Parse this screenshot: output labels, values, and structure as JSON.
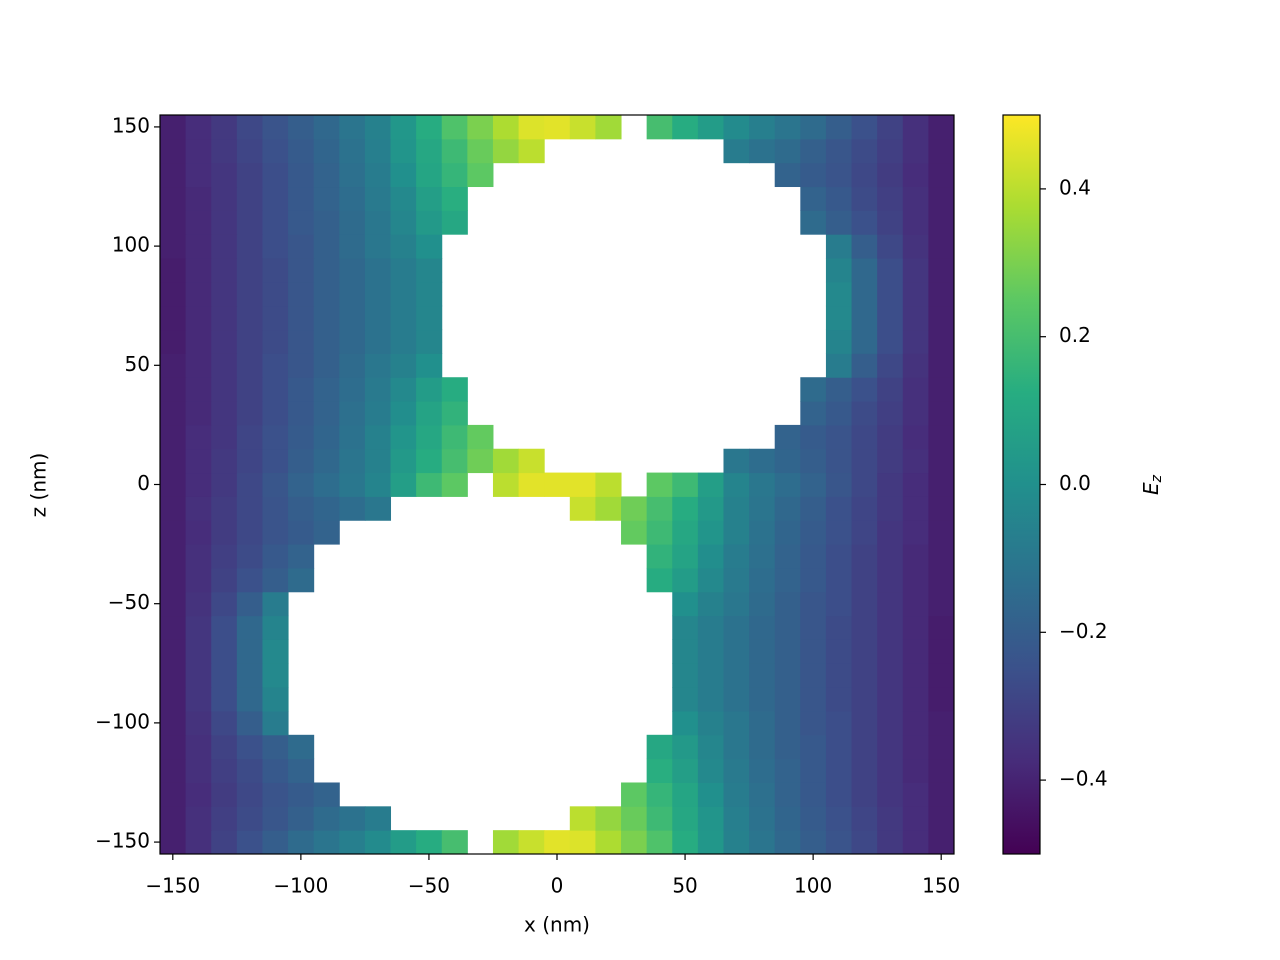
{
  "chart_data": {
    "type": "heatmap",
    "x_label": "x (nm)",
    "y_label": "z (nm)",
    "colorbar_label_base": "E",
    "colorbar_label_sub": "z",
    "colormap": "viridis",
    "x": [
      -150,
      -140,
      -130,
      -120,
      -110,
      -100,
      -90,
      -80,
      -70,
      -60,
      -50,
      -40,
      -30,
      -20,
      -10,
      0,
      10,
      20,
      30,
      40,
      50,
      60,
      70,
      80,
      90,
      100,
      110,
      120,
      130,
      140,
      150
    ],
    "y": [
      -150,
      -140,
      -130,
      -120,
      -110,
      -100,
      -90,
      -80,
      -70,
      -60,
      -50,
      -40,
      -30,
      -20,
      -10,
      0,
      10,
      20,
      30,
      40,
      50,
      60,
      70,
      80,
      90,
      100,
      110,
      120,
      130,
      140,
      150
    ],
    "values": [
      [
        -0.41,
        -0.36,
        -0.3,
        -0.25,
        -0.2,
        -0.15,
        -0.11,
        -0.07,
        -0.02,
        0.05,
        0.12,
        0.2,
        null,
        0.36,
        0.42,
        0.46,
        0.45,
        0.38,
        0.3,
        0.22,
        0.12,
        0.03,
        -0.06,
        -0.11,
        -0.16,
        -0.2,
        -0.24,
        -0.28,
        -0.33,
        -0.37,
        -0.41
      ],
      [
        -0.41,
        -0.36,
        -0.31,
        -0.27,
        -0.23,
        -0.19,
        -0.15,
        -0.12,
        -0.08,
        null,
        null,
        null,
        null,
        null,
        null,
        null,
        0.4,
        0.34,
        0.27,
        0.18,
        0.1,
        0.02,
        -0.07,
        -0.12,
        -0.17,
        -0.21,
        -0.25,
        -0.29,
        -0.33,
        -0.37,
        -0.41
      ],
      [
        -0.41,
        -0.37,
        -0.32,
        -0.28,
        -0.24,
        -0.21,
        -0.18,
        null,
        null,
        null,
        null,
        null,
        null,
        null,
        null,
        null,
        null,
        null,
        0.25,
        0.16,
        0.09,
        0.0,
        -0.08,
        -0.13,
        -0.18,
        -0.22,
        -0.26,
        -0.3,
        -0.34,
        -0.37,
        -0.41
      ],
      [
        -0.41,
        -0.36,
        -0.31,
        -0.27,
        -0.22,
        -0.18,
        null,
        null,
        null,
        null,
        null,
        null,
        null,
        null,
        null,
        null,
        null,
        null,
        null,
        0.13,
        0.06,
        -0.03,
        -0.09,
        -0.14,
        -0.18,
        -0.22,
        -0.26,
        -0.3,
        -0.34,
        -0.38,
        -0.41
      ],
      [
        -0.41,
        -0.36,
        -0.3,
        -0.25,
        -0.2,
        -0.15,
        null,
        null,
        null,
        null,
        null,
        null,
        null,
        null,
        null,
        null,
        null,
        null,
        null,
        0.1,
        0.04,
        -0.04,
        -0.1,
        -0.15,
        -0.19,
        -0.22,
        -0.26,
        -0.3,
        -0.34,
        -0.38,
        -0.41
      ],
      [
        -0.41,
        -0.35,
        -0.28,
        -0.2,
        -0.08,
        null,
        null,
        null,
        null,
        null,
        null,
        null,
        null,
        null,
        null,
        null,
        null,
        null,
        null,
        null,
        0.0,
        -0.06,
        -0.1,
        -0.15,
        -0.19,
        -0.23,
        -0.26,
        -0.3,
        -0.34,
        -0.38,
        -0.41
      ],
      [
        -0.41,
        -0.34,
        -0.26,
        -0.16,
        -0.05,
        null,
        null,
        null,
        null,
        null,
        null,
        null,
        null,
        null,
        null,
        null,
        null,
        null,
        null,
        null,
        -0.04,
        -0.08,
        -0.12,
        -0.16,
        -0.19,
        -0.23,
        -0.27,
        -0.3,
        -0.34,
        -0.38,
        -0.42
      ],
      [
        -0.41,
        -0.34,
        -0.26,
        -0.16,
        -0.03,
        null,
        null,
        null,
        null,
        null,
        null,
        null,
        null,
        null,
        null,
        null,
        null,
        null,
        null,
        null,
        -0.04,
        -0.08,
        -0.12,
        -0.16,
        -0.19,
        -0.23,
        -0.27,
        -0.3,
        -0.34,
        -0.38,
        -0.42
      ],
      [
        -0.41,
        -0.34,
        -0.26,
        -0.16,
        -0.03,
        null,
        null,
        null,
        null,
        null,
        null,
        null,
        null,
        null,
        null,
        null,
        null,
        null,
        null,
        null,
        -0.04,
        -0.08,
        -0.12,
        -0.16,
        -0.19,
        -0.23,
        -0.27,
        -0.3,
        -0.34,
        -0.38,
        -0.42
      ],
      [
        -0.41,
        -0.34,
        -0.26,
        -0.16,
        -0.05,
        null,
        null,
        null,
        null,
        null,
        null,
        null,
        null,
        null,
        null,
        null,
        null,
        null,
        null,
        null,
        -0.04,
        -0.08,
        -0.12,
        -0.16,
        -0.19,
        -0.23,
        -0.27,
        -0.3,
        -0.34,
        -0.38,
        -0.42
      ],
      [
        -0.41,
        -0.35,
        -0.28,
        -0.2,
        -0.08,
        null,
        null,
        null,
        null,
        null,
        null,
        null,
        null,
        null,
        null,
        null,
        null,
        null,
        null,
        null,
        0.0,
        -0.06,
        -0.1,
        -0.15,
        -0.19,
        -0.23,
        -0.26,
        -0.3,
        -0.34,
        -0.38,
        -0.41
      ],
      [
        -0.41,
        -0.36,
        -0.3,
        -0.25,
        -0.2,
        -0.15,
        null,
        null,
        null,
        null,
        null,
        null,
        null,
        null,
        null,
        null,
        null,
        null,
        null,
        0.12,
        0.05,
        -0.03,
        -0.09,
        -0.14,
        -0.18,
        -0.22,
        -0.26,
        -0.3,
        -0.34,
        -0.38,
        -0.41
      ],
      [
        -0.41,
        -0.36,
        -0.31,
        -0.27,
        -0.22,
        -0.18,
        null,
        null,
        null,
        null,
        null,
        null,
        null,
        null,
        null,
        null,
        null,
        null,
        null,
        0.15,
        0.08,
        -0.01,
        -0.08,
        -0.13,
        -0.18,
        -0.22,
        -0.26,
        -0.3,
        -0.34,
        -0.38,
        -0.41
      ],
      [
        -0.41,
        -0.37,
        -0.32,
        -0.28,
        -0.24,
        -0.21,
        -0.18,
        null,
        null,
        null,
        null,
        null,
        null,
        null,
        null,
        null,
        null,
        null,
        0.26,
        0.18,
        0.1,
        0.02,
        -0.06,
        -0.12,
        -0.17,
        -0.21,
        -0.25,
        -0.29,
        -0.34,
        -0.37,
        -0.41
      ],
      [
        -0.41,
        -0.36,
        -0.32,
        -0.28,
        -0.24,
        -0.2,
        -0.17,
        -0.14,
        -0.1,
        null,
        null,
        null,
        null,
        null,
        null,
        null,
        0.42,
        0.36,
        0.28,
        0.2,
        0.12,
        0.04,
        -0.06,
        -0.11,
        -0.16,
        -0.2,
        -0.25,
        -0.29,
        -0.33,
        -0.37,
        -0.41
      ],
      [
        -0.41,
        -0.37,
        -0.33,
        -0.28,
        -0.23,
        -0.18,
        -0.14,
        -0.1,
        -0.05,
        0.06,
        0.18,
        0.25,
        null,
        0.4,
        0.46,
        0.46,
        0.46,
        0.4,
        null,
        0.25,
        0.18,
        0.06,
        -0.05,
        -0.1,
        -0.14,
        -0.18,
        -0.23,
        -0.28,
        -0.33,
        -0.37,
        -0.41
      ],
      [
        -0.41,
        -0.37,
        -0.33,
        -0.29,
        -0.25,
        -0.2,
        -0.16,
        -0.11,
        -0.06,
        0.04,
        0.12,
        0.2,
        0.28,
        0.36,
        0.42,
        null,
        null,
        null,
        null,
        null,
        null,
        null,
        -0.1,
        -0.14,
        -0.17,
        -0.2,
        -0.24,
        -0.28,
        -0.32,
        -0.36,
        -0.41
      ],
      [
        -0.41,
        -0.37,
        -0.34,
        -0.29,
        -0.25,
        -0.21,
        -0.17,
        -0.12,
        -0.06,
        0.02,
        0.1,
        0.18,
        0.26,
        null,
        null,
        null,
        null,
        null,
        null,
        null,
        null,
        null,
        null,
        null,
        -0.18,
        -0.21,
        -0.24,
        -0.28,
        -0.32,
        -0.37,
        -0.41
      ],
      [
        -0.41,
        -0.38,
        -0.34,
        -0.3,
        -0.26,
        -0.22,
        -0.18,
        -0.13,
        -0.08,
        -0.01,
        0.08,
        0.15,
        null,
        null,
        null,
        null,
        null,
        null,
        null,
        null,
        null,
        null,
        null,
        null,
        null,
        -0.18,
        -0.22,
        -0.27,
        -0.31,
        -0.36,
        -0.41
      ],
      [
        -0.41,
        -0.38,
        -0.34,
        -0.3,
        -0.26,
        -0.22,
        -0.18,
        -0.14,
        -0.09,
        -0.03,
        0.05,
        0.12,
        null,
        null,
        null,
        null,
        null,
        null,
        null,
        null,
        null,
        null,
        null,
        null,
        null,
        -0.15,
        -0.2,
        -0.25,
        -0.3,
        -0.36,
        -0.41
      ],
      [
        -0.41,
        -0.38,
        -0.34,
        -0.3,
        -0.26,
        -0.23,
        -0.19,
        -0.15,
        -0.1,
        -0.06,
        0.0,
        null,
        null,
        null,
        null,
        null,
        null,
        null,
        null,
        null,
        null,
        null,
        null,
        null,
        null,
        null,
        -0.08,
        -0.2,
        -0.28,
        -0.35,
        -0.41
      ],
      [
        -0.42,
        -0.38,
        -0.34,
        -0.3,
        -0.27,
        -0.23,
        -0.19,
        -0.16,
        -0.12,
        -0.08,
        -0.04,
        null,
        null,
        null,
        null,
        null,
        null,
        null,
        null,
        null,
        null,
        null,
        null,
        null,
        null,
        null,
        -0.05,
        -0.16,
        -0.26,
        -0.34,
        -0.41
      ],
      [
        -0.42,
        -0.38,
        -0.34,
        -0.3,
        -0.27,
        -0.23,
        -0.19,
        -0.16,
        -0.12,
        -0.08,
        -0.04,
        null,
        null,
        null,
        null,
        null,
        null,
        null,
        null,
        null,
        null,
        null,
        null,
        null,
        null,
        null,
        -0.03,
        -0.16,
        -0.26,
        -0.34,
        -0.41
      ],
      [
        -0.42,
        -0.38,
        -0.34,
        -0.3,
        -0.27,
        -0.23,
        -0.19,
        -0.16,
        -0.12,
        -0.08,
        -0.04,
        null,
        null,
        null,
        null,
        null,
        null,
        null,
        null,
        null,
        null,
        null,
        null,
        null,
        null,
        null,
        -0.03,
        -0.16,
        -0.26,
        -0.34,
        -0.41
      ],
      [
        -0.42,
        -0.38,
        -0.34,
        -0.3,
        -0.27,
        -0.23,
        -0.19,
        -0.16,
        -0.12,
        -0.08,
        -0.04,
        null,
        null,
        null,
        null,
        null,
        null,
        null,
        null,
        null,
        null,
        null,
        null,
        null,
        null,
        null,
        -0.05,
        -0.16,
        -0.26,
        -0.34,
        -0.41
      ],
      [
        -0.41,
        -0.38,
        -0.34,
        -0.3,
        -0.26,
        -0.23,
        -0.19,
        -0.15,
        -0.1,
        -0.06,
        0.0,
        null,
        null,
        null,
        null,
        null,
        null,
        null,
        null,
        null,
        null,
        null,
        null,
        null,
        null,
        null,
        -0.08,
        -0.2,
        -0.28,
        -0.35,
        -0.41
      ],
      [
        -0.41,
        -0.38,
        -0.34,
        -0.3,
        -0.26,
        -0.22,
        -0.19,
        -0.15,
        -0.1,
        -0.04,
        0.04,
        0.1,
        null,
        null,
        null,
        null,
        null,
        null,
        null,
        null,
        null,
        null,
        null,
        null,
        null,
        -0.15,
        -0.2,
        -0.25,
        -0.3,
        -0.36,
        -0.41
      ],
      [
        -0.41,
        -0.38,
        -0.34,
        -0.3,
        -0.26,
        -0.22,
        -0.18,
        -0.14,
        -0.09,
        -0.03,
        0.06,
        0.13,
        null,
        null,
        null,
        null,
        null,
        null,
        null,
        null,
        null,
        null,
        null,
        null,
        null,
        -0.18,
        -0.22,
        -0.27,
        -0.31,
        -0.36,
        -0.41
      ],
      [
        -0.41,
        -0.37,
        -0.34,
        -0.3,
        -0.26,
        -0.22,
        -0.18,
        -0.13,
        -0.08,
        0.0,
        0.09,
        0.16,
        0.25,
        null,
        null,
        null,
        null,
        null,
        null,
        null,
        null,
        null,
        null,
        null,
        -0.18,
        -0.21,
        -0.24,
        -0.28,
        -0.32,
        -0.37,
        -0.41
      ],
      [
        -0.41,
        -0.37,
        -0.33,
        -0.29,
        -0.25,
        -0.21,
        -0.17,
        -0.12,
        -0.07,
        0.02,
        0.1,
        0.18,
        0.27,
        0.34,
        0.4,
        null,
        null,
        null,
        null,
        null,
        null,
        null,
        -0.08,
        -0.12,
        -0.15,
        -0.19,
        -0.23,
        -0.27,
        -0.31,
        -0.36,
        -0.41
      ],
      [
        -0.41,
        -0.37,
        -0.33,
        -0.28,
        -0.24,
        -0.2,
        -0.16,
        -0.11,
        -0.06,
        0.03,
        0.12,
        0.22,
        0.3,
        0.38,
        0.45,
        0.46,
        0.42,
        0.36,
        null,
        0.2,
        0.12,
        0.05,
        -0.02,
        -0.07,
        -0.11,
        -0.15,
        -0.2,
        -0.25,
        -0.3,
        -0.36,
        -0.41
      ]
    ],
    "xlim": [
      -155,
      155
    ],
    "ylim": [
      -155,
      155
    ],
    "xticks": [
      {
        "value": -150,
        "label": "−150"
      },
      {
        "value": -100,
        "label": "−100"
      },
      {
        "value": -50,
        "label": "−50"
      },
      0,
      50,
      100,
      150
    ],
    "yticks": [
      {
        "value": -150,
        "label": "−150"
      },
      {
        "value": -100,
        "label": "−100"
      },
      {
        "value": -50,
        "label": "−50"
      },
      0,
      50,
      100,
      150
    ],
    "clim": [
      -0.5,
      0.5
    ],
    "cticks": [
      {
        "value": -0.4,
        "label": "−0.4"
      },
      {
        "value": -0.2,
        "label": "−0.2"
      },
      {
        "value": 0,
        "label": "0.0"
      },
      0.2,
      0.4
    ]
  }
}
